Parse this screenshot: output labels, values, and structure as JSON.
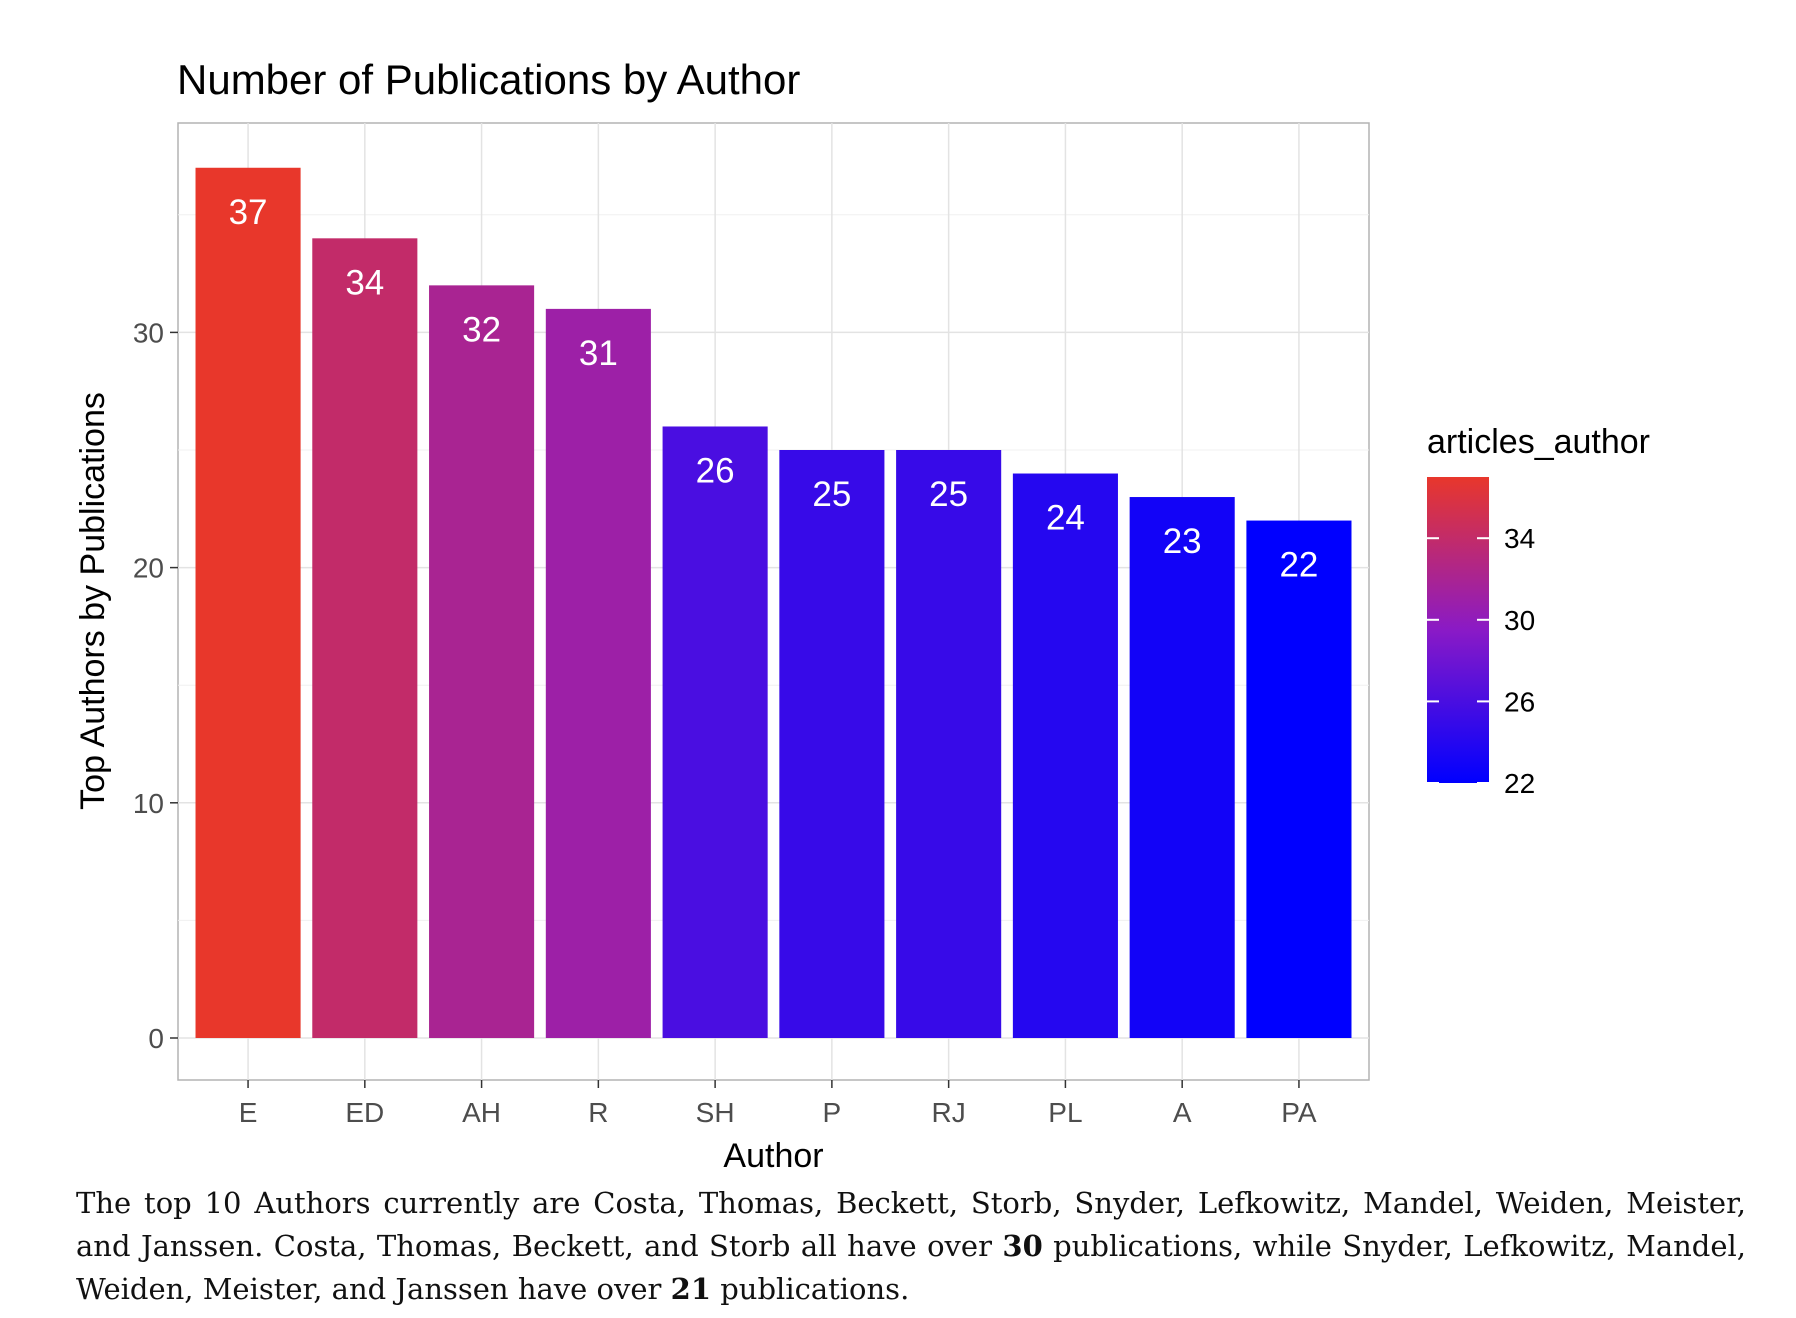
{
  "chart_data": {
    "type": "bar",
    "title": "Number of Publications by Author",
    "xlabel": "Author",
    "ylabel": "Top Authors by Publications",
    "categories": [
      "E",
      "ED",
      "AH",
      "R",
      "SH",
      "P",
      "RJ",
      "PL",
      "A",
      "PA"
    ],
    "values": [
      37,
      34,
      32,
      31,
      26,
      25,
      25,
      24,
      23,
      22
    ],
    "ylim": [
      0,
      38
    ],
    "yticks": [
      0,
      10,
      20,
      30
    ],
    "grid": true,
    "legend": {
      "title": "articles_author",
      "type": "colorbar",
      "placement": "right",
      "ticks": [
        34,
        30,
        26,
        22
      ],
      "range": [
        22,
        37
      ],
      "low_color": "#0000ff",
      "high_color": "#e8372b"
    }
  },
  "caption": {
    "p1": "The top 10 Authors currently are Costa, Thomas, Beckett, Storb, Snyder, Lefkowitz, Mandel, Weiden, Meister, and Janssen.  Costa, Thomas, Beckett, and Storb all have over ",
    "b1": "30",
    "p2": " publications, while Snyder, Lefkowitz, Mandel, Weiden, Meister, and Janssen have over ",
    "b2": "21",
    "p3": " publications."
  }
}
